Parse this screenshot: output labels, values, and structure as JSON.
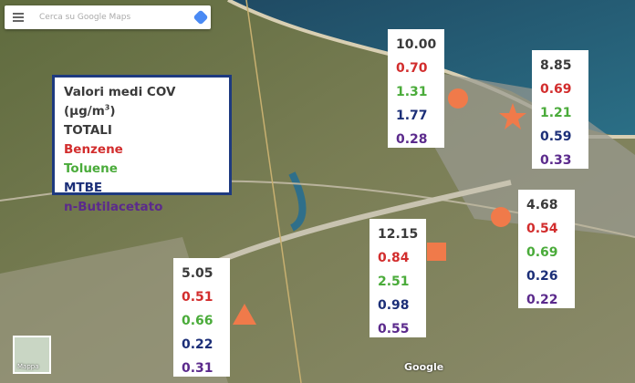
{
  "search": {
    "placeholder": "Cerca su Google Maps"
  },
  "legend": {
    "title_prefix": "Valori medi COV (µg/m",
    "title_superscript": "3",
    "title_suffix": ")",
    "items": [
      "TOTALI",
      "Benzene",
      "Toluene",
      "MTBE",
      "n-Butilacetato"
    ]
  },
  "stations": [
    {
      "values": [
        "10.00",
        "0.70",
        "1.31",
        "1.77",
        "0.28"
      ]
    },
    {
      "values": [
        "8.85",
        "0.69",
        "1.21",
        "0.59",
        "0.33"
      ]
    },
    {
      "values": [
        "4.68",
        "0.54",
        "0.69",
        "0.26",
        "0.22"
      ]
    },
    {
      "values": [
        "12.15",
        "0.84",
        "2.51",
        "0.98",
        "0.55"
      ]
    },
    {
      "values": [
        "5.05",
        "0.51",
        "0.66",
        "0.22",
        "0.31"
      ]
    }
  ],
  "map": {
    "brand": "Google",
    "layer_button": "Mappa"
  }
}
